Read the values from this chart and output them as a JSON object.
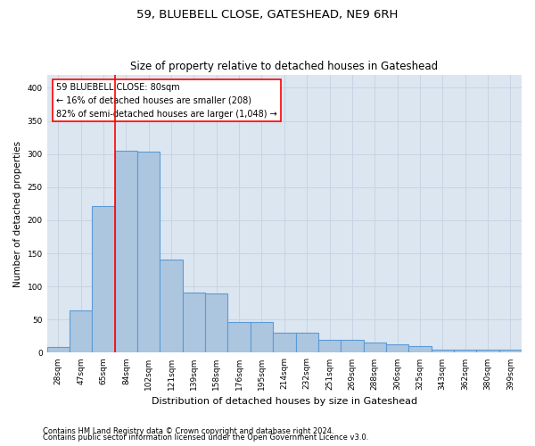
{
  "title": "59, BLUEBELL CLOSE, GATESHEAD, NE9 6RH",
  "subtitle": "Size of property relative to detached houses in Gateshead",
  "xlabel": "Distribution of detached houses by size in Gateshead",
  "ylabel": "Number of detached properties",
  "footer_line1": "Contains HM Land Registry data © Crown copyright and database right 2024.",
  "footer_line2": "Contains public sector information licensed under the Open Government Licence v3.0.",
  "categories": [
    "28sqm",
    "47sqm",
    "65sqm",
    "84sqm",
    "102sqm",
    "121sqm",
    "139sqm",
    "158sqm",
    "176sqm",
    "195sqm",
    "214sqm",
    "232sqm",
    "251sqm",
    "269sqm",
    "288sqm",
    "306sqm",
    "325sqm",
    "343sqm",
    "362sqm",
    "380sqm",
    "399sqm"
  ],
  "values": [
    8,
    64,
    222,
    305,
    303,
    140,
    91,
    90,
    47,
    47,
    30,
    30,
    20,
    20,
    15,
    13,
    10,
    5,
    5,
    4,
    4
  ],
  "bar_color": "#adc6e0",
  "bar_edge_color": "#5b9bd5",
  "bar_edge_width": 0.8,
  "grid_color": "#c8d4e3",
  "background_color": "#dce6f1",
  "annotation_text": "59 BLUEBELL CLOSE: 80sqm\n← 16% of detached houses are smaller (208)\n82% of semi-detached houses are larger (1,048) →",
  "ylim": [
    0,
    420
  ],
  "yticks": [
    0,
    50,
    100,
    150,
    200,
    250,
    300,
    350,
    400
  ],
  "title_fontsize": 9.5,
  "subtitle_fontsize": 8.5,
  "xlabel_fontsize": 8,
  "ylabel_fontsize": 7.5,
  "tick_fontsize": 6.5,
  "annotation_fontsize": 7,
  "footer_fontsize": 6
}
